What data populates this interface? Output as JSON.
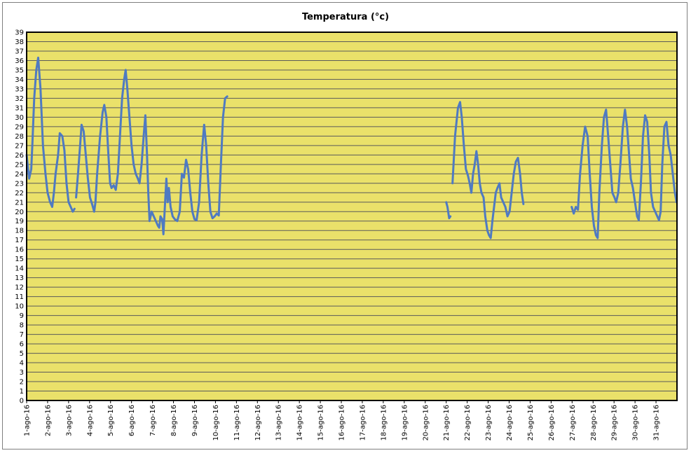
{
  "chart_data": {
    "type": "line",
    "title": "Temperatura (°c)",
    "xlabel": "",
    "ylabel": "",
    "ylim": [
      0,
      39
    ],
    "ytick_step": 1,
    "xlim": [
      1,
      32
    ],
    "grid": true,
    "legend": "none",
    "colors": {
      "plot_bg": "#eae16a",
      "grid": "#5a5a5a",
      "line": "#4f7ac2"
    },
    "x_tick_labels": [
      "1-ago-16",
      "2-ago-16",
      "3-ago-16",
      "4-ago-16",
      "5-ago-16",
      "6-ago-16",
      "7-ago-16",
      "8-ago-16",
      "9-ago-16",
      "10-ago-16",
      "11-ago-16",
      "12-ago-16",
      "13-ago-16",
      "14-ago-16",
      "15-ago-16",
      "16-ago-16",
      "17-ago-16",
      "18-ago-16",
      "19-ago-16",
      "20-ago-16",
      "21-ago-16",
      "22-ago-16",
      "23-ago-16",
      "24-ago-16",
      "25-ago-16",
      "26-ago-16",
      "27-ago-16",
      "28-ago-16",
      "29-ago-16",
      "30-ago-16",
      "31-ago-16"
    ],
    "series": [
      {
        "segments": [
          [
            [
              1.0,
              26
            ],
            [
              1.12,
              23.5
            ],
            [
              1.22,
              24.5
            ],
            [
              1.28,
              27.5
            ],
            [
              1.36,
              32
            ],
            [
              1.46,
              35
            ],
            [
              1.55,
              36.3
            ],
            [
              1.66,
              33
            ],
            [
              1.78,
              27
            ],
            [
              1.9,
              24
            ],
            [
              2.0,
              22
            ],
            [
              2.12,
              21
            ],
            [
              2.22,
              20.5
            ],
            [
              2.3,
              22
            ],
            [
              2.38,
              24
            ],
            [
              2.5,
              26
            ],
            [
              2.58,
              28.3
            ],
            [
              2.7,
              28
            ],
            [
              2.8,
              26.5
            ],
            [
              2.9,
              23
            ],
            [
              3.0,
              21
            ],
            [
              3.1,
              20.5
            ],
            [
              3.2,
              20
            ],
            [
              3.28,
              20.3
            ]
          ],
          [
            [
              3.36,
              21.5
            ],
            [
              3.45,
              24
            ],
            [
              3.55,
              27
            ],
            [
              3.62,
              29.2
            ],
            [
              3.72,
              28.5
            ],
            [
              3.82,
              26
            ],
            [
              3.92,
              23.5
            ],
            [
              4.02,
              21.5
            ],
            [
              4.12,
              20.8
            ],
            [
              4.22,
              20
            ],
            [
              4.28,
              21
            ],
            [
              4.36,
              24
            ],
            [
              4.5,
              28
            ],
            [
              4.62,
              30.5
            ],
            [
              4.7,
              31.3
            ],
            [
              4.8,
              30
            ],
            [
              4.9,
              26
            ],
            [
              4.98,
              23
            ],
            [
              5.05,
              22.5
            ],
            [
              5.15,
              22.8
            ],
            [
              5.25,
              22.3
            ],
            [
              5.35,
              24
            ],
            [
              5.45,
              28
            ],
            [
              5.55,
              32
            ],
            [
              5.65,
              34
            ],
            [
              5.72,
              35
            ],
            [
              5.8,
              33
            ],
            [
              5.9,
              30
            ],
            [
              6.0,
              27
            ],
            [
              6.1,
              25
            ],
            [
              6.2,
              24
            ],
            [
              6.3,
              23.5
            ],
            [
              6.38,
              23
            ],
            [
              6.48,
              25
            ],
            [
              6.58,
              28
            ],
            [
              6.66,
              30.2
            ],
            [
              6.74,
              26
            ],
            [
              6.8,
              22
            ],
            [
              6.86,
              19
            ],
            [
              6.96,
              20
            ],
            [
              7.06,
              19.5
            ],
            [
              7.16,
              19
            ],
            [
              7.26,
              18.5
            ],
            [
              7.32,
              18.3
            ],
            [
              7.38,
              19.5
            ],
            [
              7.46,
              19.2
            ],
            [
              7.52,
              17.6
            ],
            [
              7.6,
              21
            ],
            [
              7.66,
              23.5
            ],
            [
              7.72,
              21
            ],
            [
              7.78,
              22.5
            ],
            [
              7.86,
              20.5
            ],
            [
              7.96,
              19.5
            ],
            [
              8.06,
              19.2
            ],
            [
              8.18,
              19
            ],
            [
              8.3,
              20
            ],
            [
              8.4,
              24
            ],
            [
              8.5,
              23.6
            ],
            [
              8.6,
              25.5
            ],
            [
              8.7,
              24.5
            ],
            [
              8.8,
              22
            ],
            [
              8.9,
              20
            ],
            [
              9.0,
              19.2
            ],
            [
              9.1,
              19.1
            ],
            [
              9.22,
              21
            ],
            [
              9.34,
              26
            ],
            [
              9.46,
              29.2
            ],
            [
              9.56,
              27
            ],
            [
              9.66,
              23
            ],
            [
              9.76,
              20
            ],
            [
              9.86,
              19.3
            ],
            [
              9.96,
              19.5
            ],
            [
              10.06,
              19.8
            ],
            [
              10.16,
              19.6
            ],
            [
              10.26,
              25
            ],
            [
              10.36,
              30
            ],
            [
              10.46,
              32
            ],
            [
              10.56,
              32.2
            ]
          ],
          [
            [
              21.0,
              21
            ],
            [
              21.06,
              20.5
            ],
            [
              21.14,
              19.3
            ],
            [
              21.2,
              19.5
            ]
          ],
          [
            [
              21.3,
              23
            ],
            [
              21.42,
              28
            ],
            [
              21.56,
              31
            ],
            [
              21.66,
              31.6
            ],
            [
              21.74,
              30
            ],
            [
              21.84,
              27
            ],
            [
              21.94,
              24.5
            ],
            [
              22.04,
              23.8
            ],
            [
              22.12,
              23
            ],
            [
              22.2,
              22
            ],
            [
              22.28,
              24
            ],
            [
              22.36,
              25
            ],
            [
              22.44,
              26.4
            ],
            [
              22.52,
              25
            ],
            [
              22.6,
              23
            ],
            [
              22.68,
              22
            ],
            [
              22.78,
              21.5
            ],
            [
              22.86,
              19.5
            ],
            [
              22.96,
              18
            ],
            [
              23.04,
              17.5
            ],
            [
              23.12,
              17.2
            ],
            [
              23.2,
              19
            ],
            [
              23.28,
              20.5
            ],
            [
              23.36,
              22
            ],
            [
              23.44,
              22.5
            ],
            [
              23.54,
              23
            ],
            [
              23.62,
              21.5
            ],
            [
              23.72,
              21
            ],
            [
              23.82,
              20.5
            ],
            [
              23.92,
              19.5
            ],
            [
              24.02,
              20
            ],
            [
              24.12,
              22
            ],
            [
              24.22,
              24
            ],
            [
              24.32,
              25.3
            ],
            [
              24.42,
              25.7
            ],
            [
              24.52,
              24
            ],
            [
              24.6,
              22
            ],
            [
              24.68,
              20.8
            ]
          ],
          [
            [
              26.98,
              20.5
            ],
            [
              27.08,
              19.8
            ],
            [
              27.18,
              20.5
            ],
            [
              27.28,
              20.2
            ],
            [
              27.38,
              24
            ],
            [
              27.5,
              27
            ],
            [
              27.62,
              29
            ],
            [
              27.74,
              28
            ],
            [
              27.84,
              24
            ],
            [
              27.94,
              20.5
            ],
            [
              28.04,
              18.5
            ],
            [
              28.14,
              17.5
            ],
            [
              28.22,
              17.2
            ],
            [
              28.3,
              22
            ],
            [
              28.42,
              27
            ],
            [
              28.52,
              30
            ],
            [
              28.62,
              30.8
            ],
            [
              28.72,
              28
            ],
            [
              28.82,
              25
            ],
            [
              28.92,
              22
            ],
            [
              29.02,
              21.5
            ],
            [
              29.1,
              21
            ],
            [
              29.2,
              22
            ],
            [
              29.3,
              25
            ],
            [
              29.42,
              29
            ],
            [
              29.52,
              30.8
            ],
            [
              29.62,
              29
            ],
            [
              29.72,
              26
            ],
            [
              29.8,
              23.5
            ],
            [
              29.9,
              22.5
            ],
            [
              30.0,
              21
            ],
            [
              30.1,
              19.5
            ],
            [
              30.18,
              19.1
            ],
            [
              30.28,
              23
            ],
            [
              30.38,
              28
            ],
            [
              30.48,
              30.2
            ],
            [
              30.58,
              29.5
            ],
            [
              30.68,
              26
            ],
            [
              30.76,
              22
            ],
            [
              30.86,
              20.5
            ],
            [
              30.96,
              20
            ],
            [
              31.06,
              19.5
            ],
            [
              31.14,
              19.1
            ],
            [
              31.22,
              20
            ],
            [
              31.3,
              25
            ],
            [
              31.4,
              29
            ],
            [
              31.5,
              29.5
            ],
            [
              31.6,
              27
            ],
            [
              31.7,
              26
            ],
            [
              31.8,
              24
            ],
            [
              31.9,
              22
            ],
            [
              31.98,
              21
            ]
          ]
        ]
      }
    ]
  }
}
